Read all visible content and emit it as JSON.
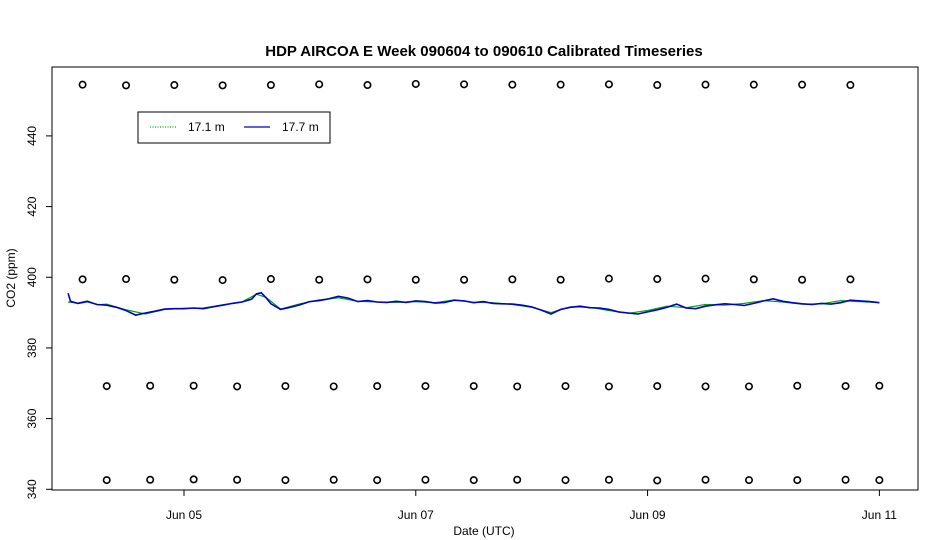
{
  "chart_data": {
    "type": "line",
    "title": "HDP AIRCOA E  Week 090604 to 090610  Calibrated Timeseries",
    "xlabel": "Date (UTC)",
    "ylabel": "CO2 (ppm)",
    "xlim": [
      "2009-06-03T20:40",
      "2009-06-11T08:00"
    ],
    "ylim": [
      339.8,
      459.5
    ],
    "x_ticks": [
      {
        "label": "Jun 05",
        "date": "2009-06-05T00:00"
      },
      {
        "label": "Jun 07",
        "date": "2009-06-07T00:00"
      },
      {
        "label": "Jun 09",
        "date": "2009-06-09T00:00"
      },
      {
        "label": "Jun 11",
        "date": "2009-06-11T00:00"
      }
    ],
    "y_ticks": [
      {
        "label": "340",
        "value": 340
      },
      {
        "label": "360",
        "value": 360
      },
      {
        "label": "380",
        "value": 380
      },
      {
        "label": "400",
        "value": 400
      },
      {
        "label": "420",
        "value": 420
      },
      {
        "label": "440",
        "value": 440
      }
    ],
    "legend": {
      "position": "top-left",
      "entries": [
        {
          "label": "17.1 m",
          "color": "#00aa00",
          "style": "dotted"
        },
        {
          "label": "17.7 m",
          "color": "#0000cc",
          "style": "solid"
        }
      ]
    },
    "series": [
      {
        "name": "17.1 m",
        "color": "#00aa00",
        "x": [
          "2009-06-04T00:00",
          "2009-06-04T02:00",
          "2009-06-04T04:00",
          "2009-06-04T06:00",
          "2009-06-04T08:00",
          "2009-06-04T12:00",
          "2009-06-04T16:00",
          "2009-06-04T20:00",
          "2009-06-05T00:00",
          "2009-06-05T04:00",
          "2009-06-05T08:00",
          "2009-06-05T12:00",
          "2009-06-05T15:00",
          "2009-06-05T17:00",
          "2009-06-05T20:00",
          "2009-06-06T00:00",
          "2009-06-06T04:00",
          "2009-06-06T08:00",
          "2009-06-06T12:00",
          "2009-06-06T16:00",
          "2009-06-06T20:00",
          "2009-06-07T00:00",
          "2009-06-07T04:00",
          "2009-06-07T08:00",
          "2009-06-07T12:00",
          "2009-06-07T16:00",
          "2009-06-07T20:00",
          "2009-06-08T00:00",
          "2009-06-08T04:00",
          "2009-06-08T08:00",
          "2009-06-08T12:00",
          "2009-06-08T16:00",
          "2009-06-08T20:00",
          "2009-06-09T00:00",
          "2009-06-09T04:00",
          "2009-06-09T08:00",
          "2009-06-09T12:00",
          "2009-06-09T16:00",
          "2009-06-09T20:00",
          "2009-06-10T00:00",
          "2009-06-10T04:00",
          "2009-06-10T08:00",
          "2009-06-10T12:00",
          "2009-06-10T16:00",
          "2009-06-10T20:00",
          "2009-06-11T00:00"
        ],
        "y": [
          393,
          392.7,
          393.3,
          392.2,
          392.4,
          390.8,
          389.6,
          390.9,
          391.2,
          391.3,
          392.2,
          393,
          395.2,
          394.3,
          391,
          392.5,
          393.6,
          394.2,
          393.2,
          393,
          392.9,
          393.1,
          392.8,
          393.6,
          392.9,
          392.8,
          392.3,
          391.5,
          390,
          391.6,
          391.5,
          390.6,
          389.8,
          390.6,
          391.8,
          391.4,
          392.3,
          392.1,
          392.6,
          393.4,
          393,
          392.4,
          392.5,
          393.4,
          393.1,
          392.8
        ]
      },
      {
        "name": "17.7 m",
        "color": "#0000cc",
        "x": [
          "2009-06-04T00:00",
          "2009-06-04T00:30",
          "2009-06-04T02:00",
          "2009-06-04T04:00",
          "2009-06-04T06:00",
          "2009-06-04T08:00",
          "2009-06-04T10:00",
          "2009-06-04T12:00",
          "2009-06-04T14:00",
          "2009-06-04T16:00",
          "2009-06-04T18:00",
          "2009-06-04T20:00",
          "2009-06-04T22:00",
          "2009-06-05T00:00",
          "2009-06-05T02:00",
          "2009-06-05T04:00",
          "2009-06-05T06:00",
          "2009-06-05T08:00",
          "2009-06-05T10:00",
          "2009-06-05T12:00",
          "2009-06-05T14:00",
          "2009-06-05T15:00",
          "2009-06-05T16:00",
          "2009-06-05T17:00",
          "2009-06-05T18:00",
          "2009-06-05T20:00",
          "2009-06-05T22:00",
          "2009-06-06T00:00",
          "2009-06-06T02:00",
          "2009-06-06T04:00",
          "2009-06-06T06:00",
          "2009-06-06T08:00",
          "2009-06-06T10:00",
          "2009-06-06T12:00",
          "2009-06-06T14:00",
          "2009-06-06T16:00",
          "2009-06-06T18:00",
          "2009-06-06T20:00",
          "2009-06-06T22:00",
          "2009-06-07T00:00",
          "2009-06-07T02:00",
          "2009-06-07T04:00",
          "2009-06-07T06:00",
          "2009-06-07T08:00",
          "2009-06-07T10:00",
          "2009-06-07T12:00",
          "2009-06-07T14:00",
          "2009-06-07T16:00",
          "2009-06-07T18:00",
          "2009-06-07T20:00",
          "2009-06-07T22:00",
          "2009-06-08T00:00",
          "2009-06-08T02:00",
          "2009-06-08T04:00",
          "2009-06-08T06:00",
          "2009-06-08T08:00",
          "2009-06-08T10:00",
          "2009-06-08T12:00",
          "2009-06-08T14:00",
          "2009-06-08T16:00",
          "2009-06-08T18:00",
          "2009-06-08T20:00",
          "2009-06-08T22:00",
          "2009-06-09T00:00",
          "2009-06-09T02:00",
          "2009-06-09T04:00",
          "2009-06-09T06:00",
          "2009-06-09T08:00",
          "2009-06-09T10:00",
          "2009-06-09T12:00",
          "2009-06-09T14:00",
          "2009-06-09T16:00",
          "2009-06-09T18:00",
          "2009-06-09T20:00",
          "2009-06-09T22:00",
          "2009-06-10T00:00",
          "2009-06-10T02:00",
          "2009-06-10T04:00",
          "2009-06-10T06:00",
          "2009-06-10T08:00",
          "2009-06-10T10:00",
          "2009-06-10T12:00",
          "2009-06-10T14:00",
          "2009-06-10T16:00",
          "2009-06-10T18:00",
          "2009-06-10T20:00",
          "2009-06-10T22:00",
          "2009-06-11T00:00"
        ],
        "y": [
          395.5,
          393.2,
          392.6,
          393.1,
          392.3,
          392.1,
          391.5,
          390.6,
          389.3,
          389.9,
          390.4,
          391,
          391.1,
          391.1,
          391.3,
          391.1,
          391.6,
          392.1,
          392.6,
          393,
          393.8,
          395.3,
          395.6,
          394.2,
          392.5,
          390.9,
          391.5,
          392.2,
          393.1,
          393.4,
          393.9,
          394.6,
          394.1,
          393.1,
          393.4,
          393,
          392.9,
          393.2,
          392.9,
          393.3,
          393.1,
          392.7,
          392.9,
          393.5,
          393.3,
          392.8,
          393.1,
          392.6,
          392.5,
          392.4,
          392.1,
          391.6,
          390.7,
          389.6,
          390.9,
          391.5,
          391.8,
          391.4,
          391.3,
          390.9,
          390.2,
          389.9,
          389.6,
          390.2,
          390.8,
          391.5,
          392.4,
          391.3,
          391.1,
          391.8,
          392.2,
          392.5,
          392.3,
          392,
          392.6,
          393.3,
          393.9,
          393.2,
          392.8,
          392.5,
          392.3,
          392.6,
          392.4,
          392.8,
          393.5,
          393.3,
          393.1,
          392.8
        ]
      },
      {
        "name": "",
        "type": "scatter",
        "marker": "circle-open",
        "color": "#000000",
        "x": [
          "2009-06-04T03:00",
          "2009-06-04T12:00",
          "2009-06-04T22:00",
          "2009-06-05T08:00",
          "2009-06-05T18:00",
          "2009-06-06T04:00",
          "2009-06-06T14:00",
          "2009-06-07T00:00",
          "2009-06-07T10:00",
          "2009-06-07T20:00",
          "2009-06-08T06:00",
          "2009-06-08T16:00",
          "2009-06-09T02:00",
          "2009-06-09T12:00",
          "2009-06-09T22:00",
          "2009-06-10T08:00",
          "2009-06-10T18:00",
          "2009-06-04T03:00",
          "2009-06-04T12:00",
          "2009-06-04T22:00",
          "2009-06-05T08:00",
          "2009-06-05T18:00",
          "2009-06-06T04:00",
          "2009-06-06T14:00",
          "2009-06-07T00:00",
          "2009-06-07T10:00",
          "2009-06-07T20:00",
          "2009-06-08T06:00",
          "2009-06-08T16:00",
          "2009-06-09T02:00",
          "2009-06-09T12:00",
          "2009-06-09T22:00",
          "2009-06-10T08:00",
          "2009-06-10T18:00",
          "2009-06-04T08:00",
          "2009-06-04T17:00",
          "2009-06-05T02:00",
          "2009-06-05T11:00",
          "2009-06-05T21:00",
          "2009-06-06T07:00",
          "2009-06-06T16:00",
          "2009-06-07T02:00",
          "2009-06-07T12:00",
          "2009-06-07T21:00",
          "2009-06-08T07:00",
          "2009-06-08T16:00",
          "2009-06-09T02:00",
          "2009-06-09T12:00",
          "2009-06-09T21:00",
          "2009-06-10T07:00",
          "2009-06-10T17:00",
          "2009-06-11T00:00",
          "2009-06-04T08:00",
          "2009-06-04T17:00",
          "2009-06-05T02:00",
          "2009-06-05T11:00",
          "2009-06-05T21:00",
          "2009-06-06T07:00",
          "2009-06-06T16:00",
          "2009-06-07T02:00",
          "2009-06-07T12:00",
          "2009-06-07T21:00",
          "2009-06-08T07:00",
          "2009-06-08T16:00",
          "2009-06-09T02:00",
          "2009-06-09T12:00",
          "2009-06-09T21:00",
          "2009-06-10T07:00",
          "2009-06-10T17:00",
          "2009-06-11T00:00"
        ],
        "y": [
          454.5,
          454.3,
          454.4,
          454.3,
          454.4,
          454.6,
          454.4,
          454.7,
          454.6,
          454.5,
          454.5,
          454.6,
          454.4,
          454.5,
          454.5,
          454.5,
          454.4,
          399.4,
          399.5,
          399.3,
          399.2,
          399.5,
          399.3,
          399.4,
          399.3,
          399.3,
          399.4,
          399.3,
          399.6,
          399.5,
          399.6,
          399.4,
          399.3,
          399.4,
          369.2,
          369.3,
          369.3,
          369.1,
          369.2,
          369.1,
          369.2,
          369.2,
          369.2,
          369.1,
          369.2,
          369.1,
          369.2,
          369.1,
          369.1,
          369.3,
          369.2,
          369.3,
          342.6,
          342.7,
          342.8,
          342.7,
          342.6,
          342.7,
          342.6,
          342.7,
          342.6,
          342.7,
          342.6,
          342.7,
          342.5,
          342.7,
          342.6,
          342.6,
          342.7,
          342.6
        ]
      }
    ]
  }
}
